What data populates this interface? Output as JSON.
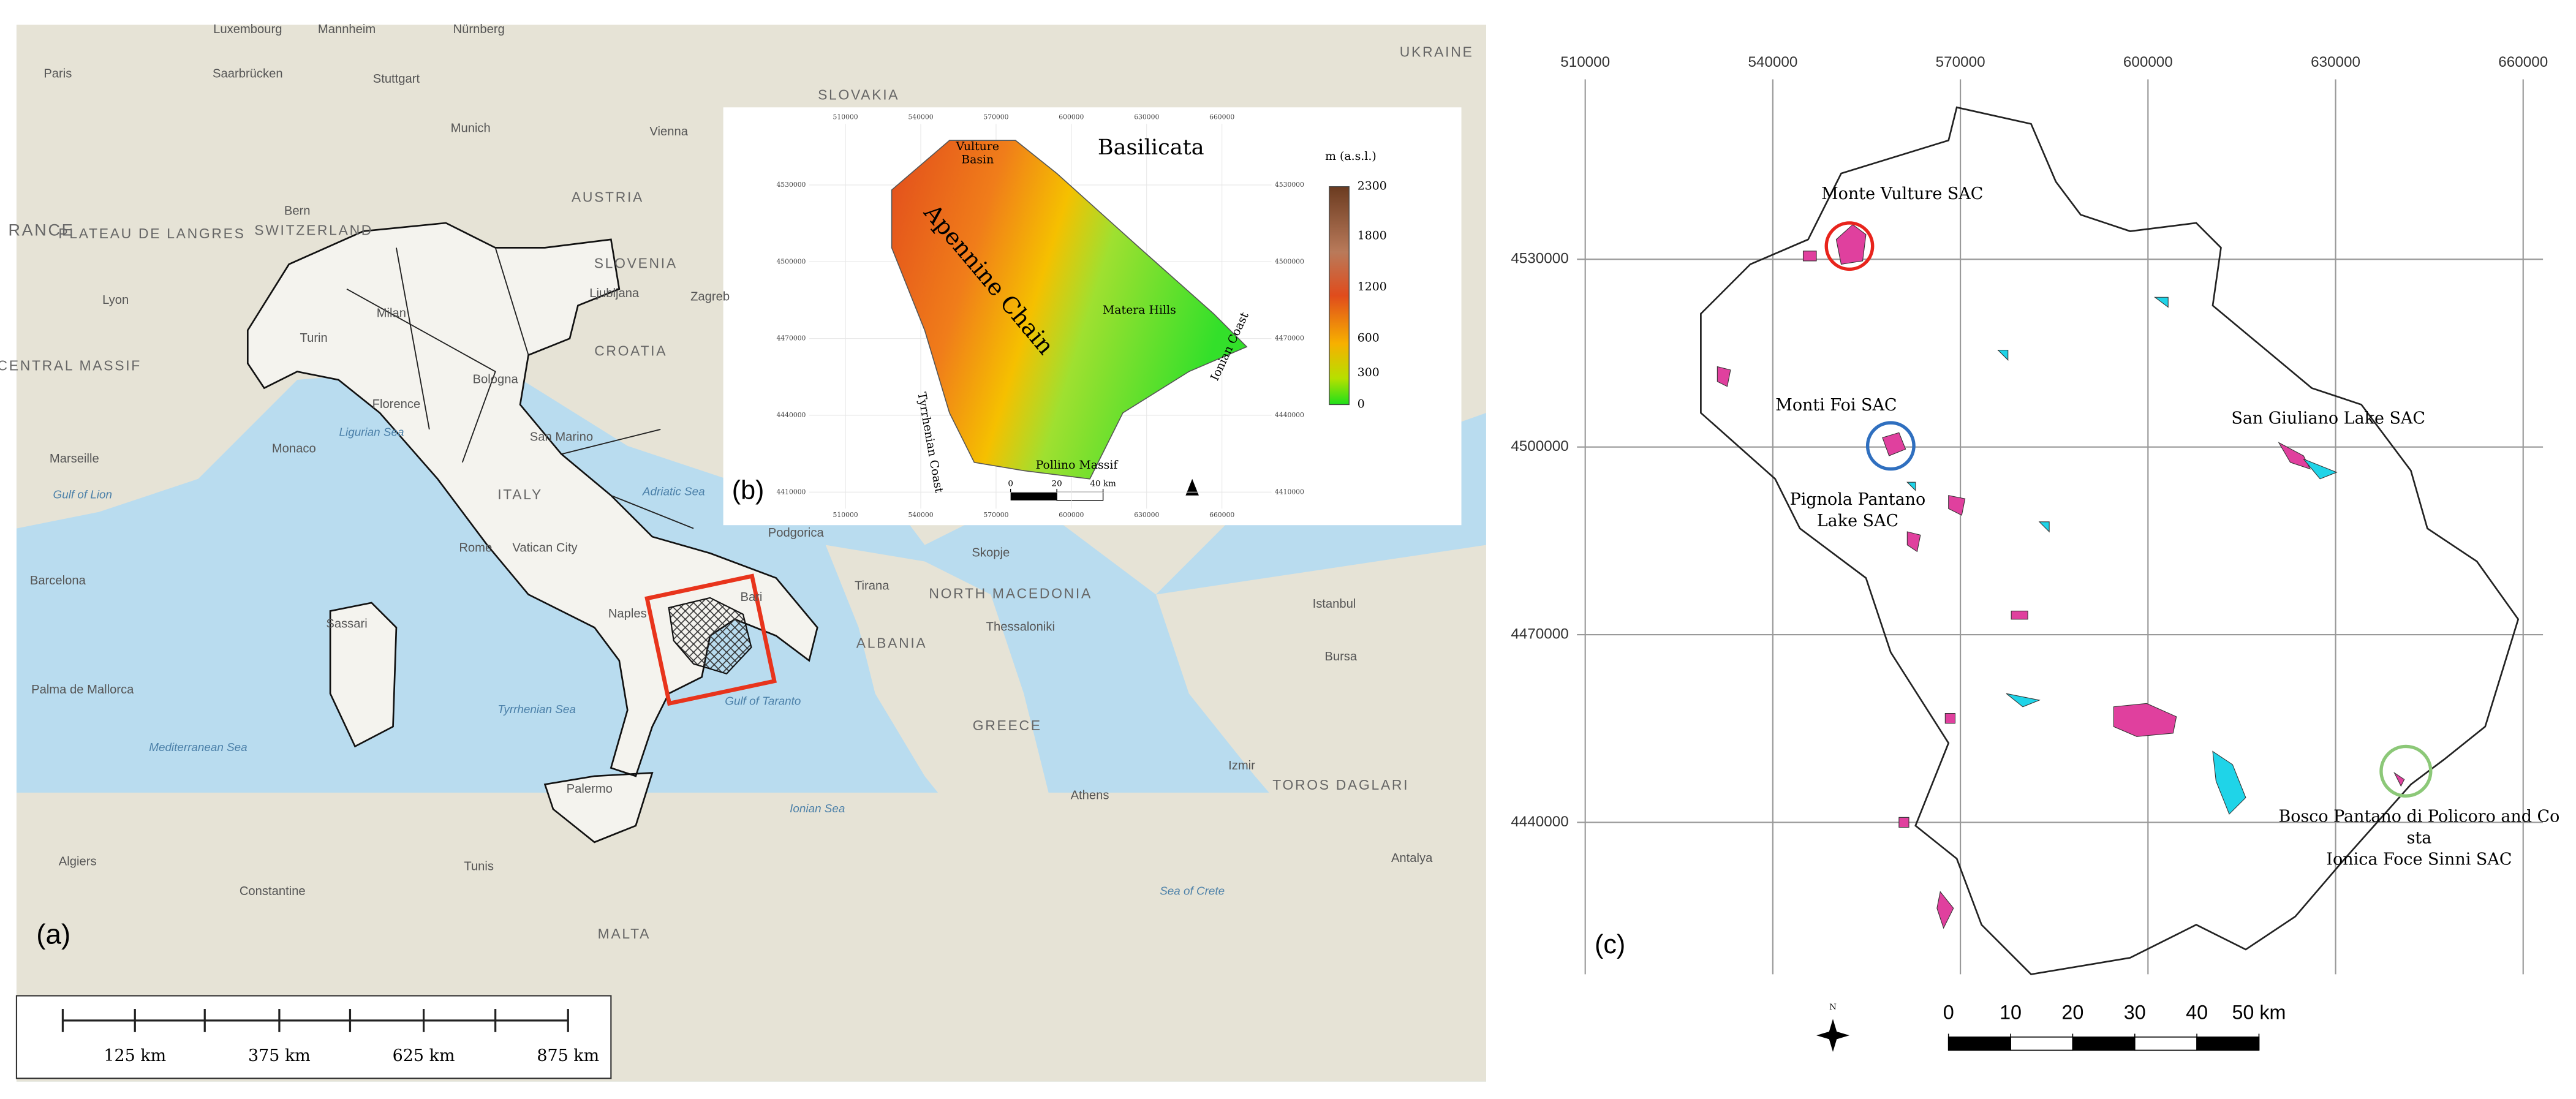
{
  "panel_a": {
    "label": "(a)",
    "places": [
      "Luxembourg",
      "Mannheim",
      "Nürnberg",
      "Paris",
      "Saarbrücken",
      "Stuttgart",
      "Munich",
      "Vienna",
      "SLOVAKIA",
      "UKRAINE",
      "Bern",
      "SWITZERLAND",
      "AUSTRIA",
      "SLOVENIA",
      "Ljubljana",
      "Zagreb",
      "CROATIA",
      "Milan",
      "Turin",
      "Bologna",
      "Florence",
      "Monaco",
      "Marseille",
      "San Marino",
      "Ligurian Sea",
      "Adriatic Sea",
      "ITALY",
      "Rome",
      "Vatican City",
      "Sassari",
      "Naples",
      "Bari",
      "Tyrrhenian Sea",
      "Gulf of Taranto",
      "Palermo",
      "Podgorica",
      "Skopje",
      "Tirana",
      "ALBANIA",
      "NORTH MACEDONIA",
      "Thessaloniki",
      "GREECE",
      "Athens",
      "Istanbul",
      "Bursa",
      "Izmir",
      "TOROS DAGLARI",
      "Antalya",
      "Sea of Crete",
      "Ionian Sea",
      "Mediterranean Sea",
      "Algiers",
      "Constantine",
      "Tunis",
      "MALTA",
      "Barcelona",
      "Palma de Mallorca",
      "Gulf of Lion",
      "Lyon",
      "PLATEAU DE LANGRES",
      "CENTRAL MASSIF",
      "RANCE"
    ],
    "scale_ticks": [
      {
        "value": 125,
        "label": "125 km"
      },
      {
        "value": 375,
        "label": "375 km"
      },
      {
        "value": 625,
        "label": "625 km"
      },
      {
        "value": 875,
        "label": "875 km"
      }
    ]
  },
  "panel_b": {
    "label": "(b)",
    "title": "Basilicata",
    "legend_title": "m (a.s.l.)",
    "legend_ticks": [
      2300,
      1800,
      1200,
      600,
      300,
      0
    ],
    "regions": [
      "Vulture Basin",
      "Apennine Chain",
      "Matera Hills",
      "Ionian Coast",
      "Tyrrhenian Coast",
      "Pollino Massif"
    ],
    "xticks": [
      510000,
      540000,
      570000,
      600000,
      630000,
      660000
    ],
    "yticks": [
      4530000,
      4500000,
      4470000,
      4440000,
      4410000
    ],
    "scale_ticks": [
      0,
      20,
      {
        "value": 40,
        "label": "40 km"
      }
    ]
  },
  "panel_c": {
    "label": "(c)",
    "xticks": [
      510000,
      540000,
      570000,
      600000,
      630000,
      660000
    ],
    "yticks": [
      4530000,
      4500000,
      4470000,
      4440000
    ],
    "sites": [
      "Monte Vulture SAC",
      "Monti Foi SAC",
      "Pignola Pantano Lake SAC",
      "San Giuliano Lake SAC",
      "Bosco Pantano di Policoro and Costa Ionica Foce Sinni SAC"
    ],
    "north": "N",
    "scale_ticks": [
      0,
      10,
      20,
      30,
      40,
      {
        "value": 50,
        "label": "50 km"
      }
    ]
  }
}
